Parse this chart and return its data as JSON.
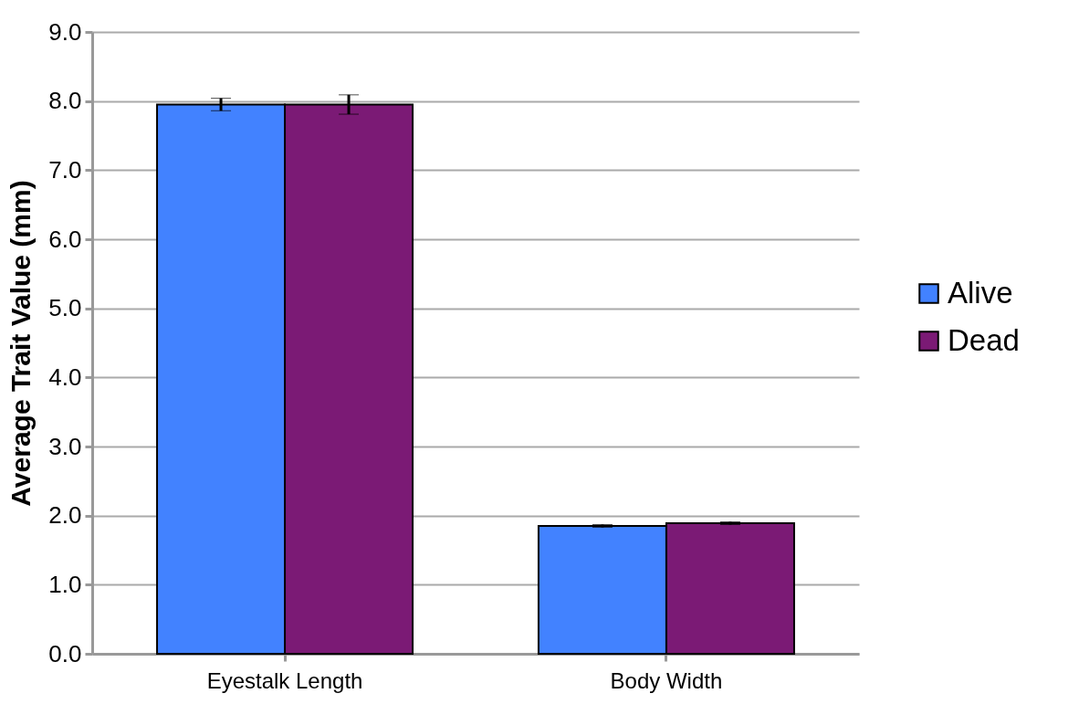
{
  "chart_data": {
    "type": "bar",
    "ylabel": "Average Trait Value (mm)",
    "categories": [
      "Eyestalk Length",
      "Body Width"
    ],
    "series": [
      {
        "name": "Alive",
        "color": "#4282ff",
        "values": [
          7.95,
          1.85
        ],
        "errors": [
          0.09,
          0.02
        ]
      },
      {
        "name": "Dead",
        "color": "#7b1a75",
        "values": [
          7.95,
          1.89
        ],
        "errors": [
          0.14,
          0.02
        ]
      }
    ],
    "ylim": [
      0,
      9
    ],
    "yticks": [
      {
        "value": 0,
        "label": "0.0"
      },
      {
        "value": 1,
        "label": "1.0"
      },
      {
        "value": 2,
        "label": "2.0"
      },
      {
        "value": 3,
        "label": "3.0"
      },
      {
        "value": 4,
        "label": "4.0"
      },
      {
        "value": 5,
        "label": "5.0"
      },
      {
        "value": 6,
        "label": "6.0"
      },
      {
        "value": 7,
        "label": "7.0"
      },
      {
        "value": 8,
        "label": "8.0"
      },
      {
        "value": 9,
        "label": "9.0"
      }
    ],
    "grid": "y",
    "legend": "right"
  }
}
